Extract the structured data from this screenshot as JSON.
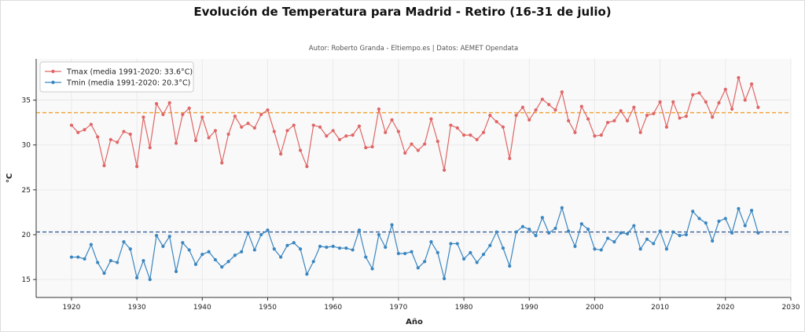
{
  "chart_data": {
    "type": "line",
    "title": "Evolución de Temperatura para Madrid - Retiro (16-31 de julio)",
    "subtitle": "Autor: Roberto Granda - Eltiempo.es | Datos: AEMET Opendata",
    "xlabel": "Año",
    "ylabel": "°C",
    "xlim": [
      1914.6,
      2030
    ],
    "ylim": [
      13.0,
      39.6
    ],
    "xticks": [
      1920,
      1930,
      1940,
      1950,
      1960,
      1970,
      1980,
      1990,
      2000,
      2010,
      2020,
      2030
    ],
    "yticks": [
      15,
      20,
      25,
      30,
      35
    ],
    "grid": true,
    "legend_position": "top-left",
    "x_start": 1920,
    "series": [
      {
        "name": "Tmax (media 1991-2020: 33.6°C)",
        "color": "#e06666",
        "reference": 33.6,
        "reference_color": "#f0a030",
        "values": [
          32.2,
          31.4,
          31.7,
          32.3,
          30.9,
          27.7,
          30.6,
          30.3,
          31.5,
          31.2,
          27.6,
          33.1,
          29.7,
          34.6,
          33.4,
          34.7,
          30.2,
          33.4,
          34.1,
          30.5,
          33.1,
          30.8,
          31.6,
          28.0,
          31.2,
          33.2,
          32.0,
          32.4,
          31.9,
          33.4,
          33.9,
          31.5,
          29.0,
          31.6,
          32.2,
          29.4,
          27.6,
          32.2,
          32.0,
          31.0,
          31.6,
          30.6,
          31.0,
          31.1,
          32.1,
          29.7,
          29.8,
          34.0,
          31.4,
          32.8,
          31.5,
          29.1,
          30.1,
          29.4,
          30.1,
          32.9,
          30.4,
          27.2,
          32.2,
          31.9,
          31.1,
          31.1,
          30.6,
          31.4,
          33.3,
          32.6,
          32.0,
          28.5,
          33.3,
          34.2,
          32.8,
          33.9,
          35.1,
          34.5,
          33.9,
          35.9,
          32.7,
          31.4,
          34.3,
          32.9,
          31.0,
          31.1,
          32.5,
          32.7,
          33.8,
          32.7,
          34.2,
          31.4,
          33.3,
          33.5,
          34.8,
          32.0,
          34.8,
          33.0,
          33.2,
          35.6,
          35.8,
          34.8,
          33.1,
          34.7,
          36.2,
          34.0,
          37.5,
          35.0,
          36.8,
          34.2
        ]
      },
      {
        "name": "Tmin (media 1991-2020: 20.3°C)",
        "color": "#3a86c0",
        "reference": 20.3,
        "reference_color": "#3a5f9a",
        "values": [
          17.5,
          17.5,
          17.3,
          18.9,
          16.9,
          15.7,
          17.1,
          16.9,
          19.2,
          18.4,
          15.2,
          17.1,
          15.0,
          19.9,
          18.7,
          19.8,
          15.9,
          19.1,
          18.3,
          16.7,
          17.8,
          18.1,
          17.2,
          16.4,
          17.0,
          17.7,
          18.1,
          20.2,
          18.3,
          20.0,
          20.5,
          18.4,
          17.5,
          18.8,
          19.1,
          18.4,
          15.6,
          17.0,
          18.7,
          18.6,
          18.7,
          18.5,
          18.5,
          18.3,
          20.5,
          17.5,
          16.2,
          20.0,
          18.6,
          21.1,
          17.9,
          17.9,
          18.1,
          16.3,
          17.0,
          19.2,
          18.0,
          15.1,
          19.0,
          19.0,
          17.3,
          18.0,
          16.9,
          17.8,
          18.8,
          20.3,
          18.5,
          16.5,
          20.3,
          20.9,
          20.6,
          19.9,
          21.9,
          20.2,
          20.7,
          23.0,
          20.4,
          18.7,
          21.2,
          20.6,
          18.4,
          18.3,
          19.6,
          19.2,
          20.2,
          20.1,
          21.0,
          18.4,
          19.5,
          19.0,
          20.4,
          18.4,
          20.3,
          19.9,
          20.0,
          22.6,
          21.8,
          21.3,
          19.3,
          21.5,
          21.8,
          20.2,
          22.9,
          21.0,
          22.7,
          20.2
        ]
      }
    ]
  }
}
